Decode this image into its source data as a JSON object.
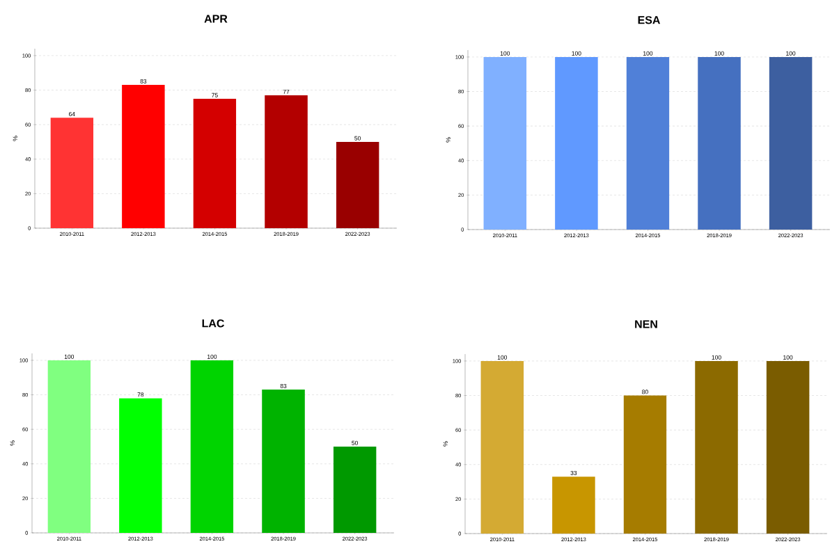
{
  "chart_data": [
    {
      "type": "bar",
      "title": "APR",
      "ylabel": "%",
      "categories": [
        "2010-2011",
        "2012-2013",
        "2014-2015",
        "2018-2019",
        "2022-2023"
      ],
      "values": [
        64,
        83,
        75,
        77,
        50
      ],
      "colors": [
        "#ff3333",
        "#ff0000",
        "#d40000",
        "#b30000",
        "#990000"
      ],
      "ylim": [
        0,
        104
      ],
      "yticks": [
        0,
        20,
        40,
        60,
        80,
        100
      ],
      "grid": "y",
      "data_labels": true
    },
    {
      "type": "bar",
      "title": "ESA",
      "ylabel": "%",
      "categories": [
        "2010-2011",
        "2012-2013",
        "2014-2015",
        "2018-2019",
        "2022-2023"
      ],
      "values": [
        100,
        100,
        100,
        100,
        100
      ],
      "colors": [
        "#80b0ff",
        "#6099ff",
        "#5080d8",
        "#4570c0",
        "#3d5fa0"
      ],
      "ylim": [
        0,
        104
      ],
      "yticks": [
        0,
        20,
        40,
        60,
        80,
        100
      ],
      "grid": "y",
      "data_labels": true
    },
    {
      "type": "bar",
      "title": "LAC",
      "ylabel": "%",
      "categories": [
        "2010-2011",
        "2012-2013",
        "2014-2015",
        "2018-2019",
        "2022-2023"
      ],
      "values": [
        100,
        78,
        100,
        83,
        50
      ],
      "colors": [
        "#80ff80",
        "#00ff00",
        "#00d400",
        "#00b300",
        "#009900"
      ],
      "ylim": [
        0,
        104
      ],
      "yticks": [
        0,
        20,
        40,
        60,
        80,
        100
      ],
      "grid": "y",
      "data_labels": true
    },
    {
      "type": "bar",
      "title": "NEN",
      "ylabel": "%",
      "categories": [
        "2010-2011",
        "2012-2013",
        "2014-2015",
        "2018-2019",
        "2022-2023"
      ],
      "values": [
        100,
        33,
        80,
        100,
        100
      ],
      "colors": [
        "#d4aa33",
        "#c89600",
        "#a67c00",
        "#8c6a00",
        "#7a5c00"
      ],
      "ylim": [
        0,
        104
      ],
      "yticks": [
        0,
        20,
        40,
        60,
        80,
        100
      ],
      "grid": "y",
      "data_labels": true
    }
  ]
}
